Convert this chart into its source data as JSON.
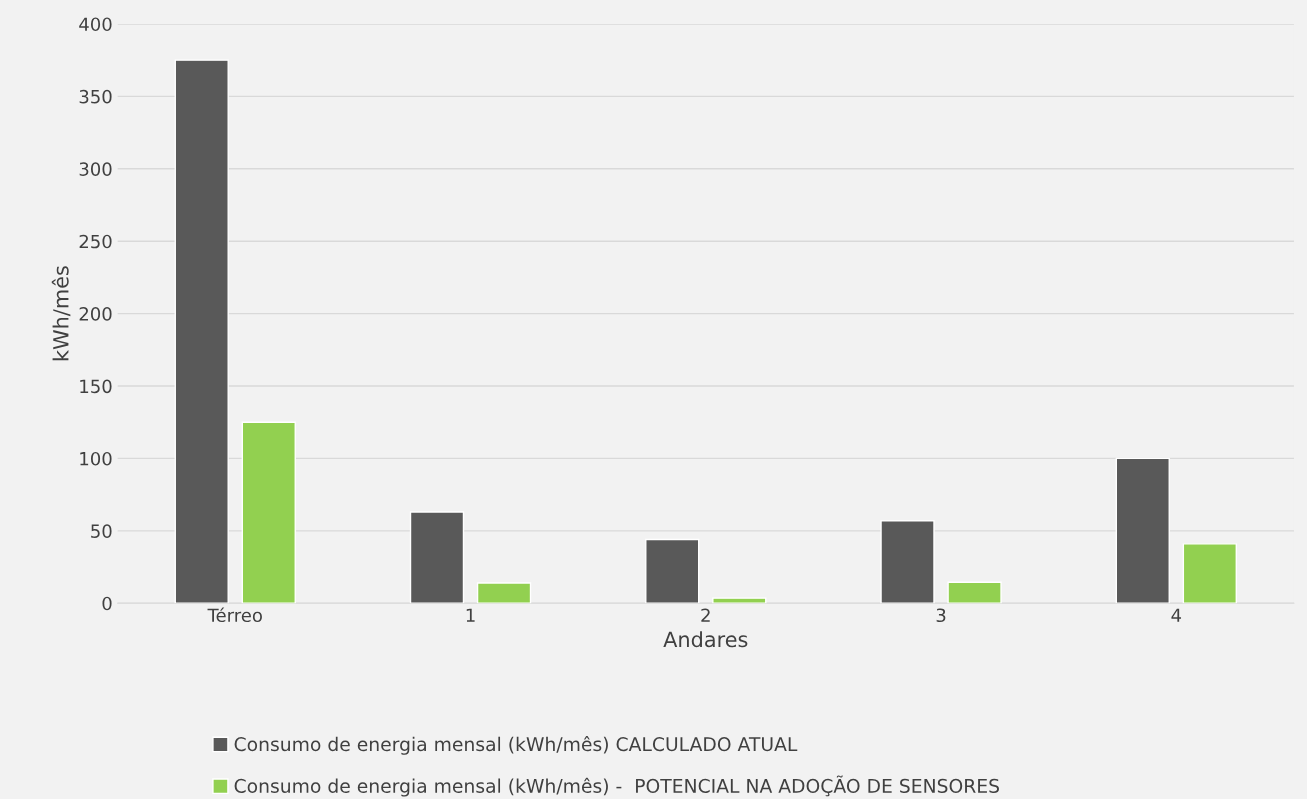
{
  "chart_data": {
    "type": "bar",
    "xlabel": "Andares",
    "ylabel": "kWh/mês",
    "categories": [
      "Térreo",
      "1",
      "2",
      "3",
      "4"
    ],
    "series": [
      {
        "name": "Consumo de energia mensal (kWh/mês) CALCULADO ATUAL",
        "color": "#595959",
        "values": [
          375,
          63,
          44,
          57,
          100
        ]
      },
      {
        "name": "Consumo de energia mensal (kWh/mês) -  POTENCIAL NA ADOÇÃO DE SENSORES",
        "color": "#92d050",
        "values": [
          125,
          14,
          3.5,
          14.5,
          41
        ]
      }
    ],
    "ylim": [
      0,
      400
    ],
    "yticks": [
      0,
      50,
      100,
      150,
      200,
      250,
      300,
      350,
      400
    ],
    "grid": "y",
    "legend": "bottom"
  }
}
